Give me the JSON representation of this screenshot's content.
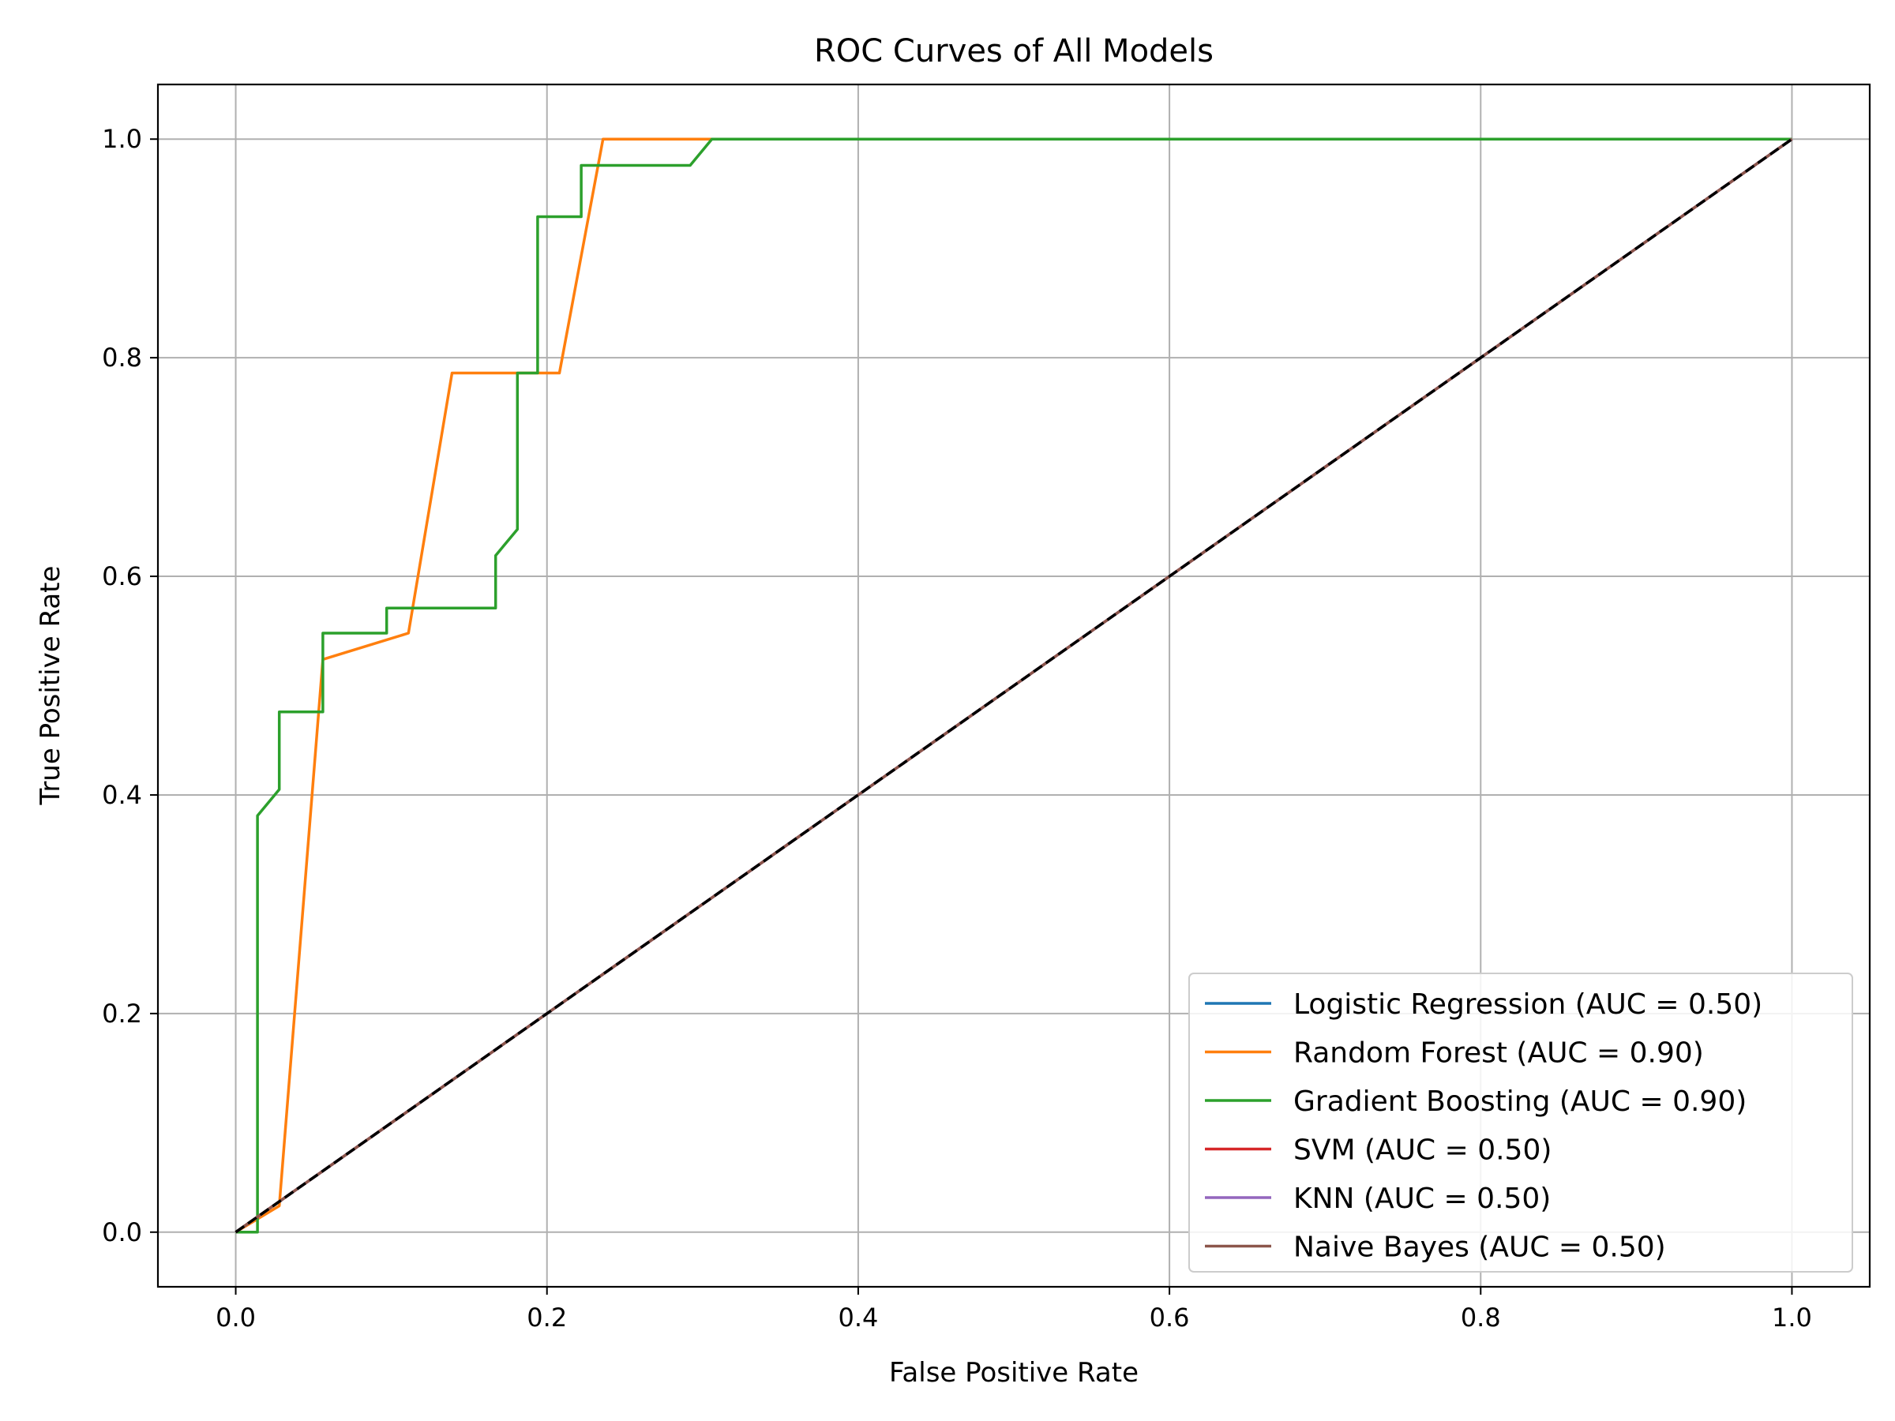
{
  "chart_data": {
    "type": "line",
    "title": "ROC Curves of All Models",
    "xlabel": "False Positive Rate",
    "ylabel": "True Positive Rate",
    "xlim": [
      -0.05,
      1.05
    ],
    "ylim": [
      -0.05,
      1.05
    ],
    "xticks": [
      0.0,
      0.2,
      0.4,
      0.6,
      0.8,
      1.0
    ],
    "yticks": [
      0.0,
      0.2,
      0.4,
      0.6,
      0.8,
      1.0
    ],
    "xtick_labels": [
      "0.0",
      "0.2",
      "0.4",
      "0.6",
      "0.8",
      "1.0"
    ],
    "ytick_labels": [
      "0.0",
      "0.2",
      "0.4",
      "0.6",
      "0.8",
      "1.0"
    ],
    "grid": true,
    "legend_position": "lower-right",
    "series": [
      {
        "name": "Logistic Regression (AUC = 0.50)",
        "color": "#1f77b4",
        "x": [
          0.0,
          1.0
        ],
        "y": [
          0.0,
          1.0
        ]
      },
      {
        "name": "Random Forest (AUC = 0.90)",
        "color": "#ff7f0e",
        "x": [
          0.0,
          0.028,
          0.056,
          0.111,
          0.139,
          0.208,
          0.236,
          1.0
        ],
        "y": [
          0.0,
          0.024,
          0.524,
          0.548,
          0.786,
          0.786,
          1.0,
          1.0
        ]
      },
      {
        "name": "Gradient Boosting (AUC = 0.90)",
        "color": "#2ca02c",
        "x": [
          0.0,
          0.014,
          0.014,
          0.028,
          0.028,
          0.056,
          0.056,
          0.097,
          0.097,
          0.167,
          0.167,
          0.181,
          0.181,
          0.194,
          0.194,
          0.222,
          0.222,
          0.292,
          0.306,
          1.0
        ],
        "y": [
          0.0,
          0.0,
          0.381,
          0.405,
          0.476,
          0.476,
          0.548,
          0.548,
          0.571,
          0.571,
          0.619,
          0.643,
          0.786,
          0.786,
          0.929,
          0.929,
          0.976,
          0.976,
          1.0,
          1.0
        ]
      },
      {
        "name": "SVM (AUC = 0.50)",
        "color": "#d62728",
        "x": [
          0.0,
          1.0
        ],
        "y": [
          0.0,
          1.0
        ]
      },
      {
        "name": "KNN (AUC = 0.50)",
        "color": "#9467bd",
        "x": [
          0.0,
          1.0
        ],
        "y": [
          0.0,
          1.0
        ]
      },
      {
        "name": "Naive Bayes (AUC = 0.50)",
        "color": "#8c564b",
        "x": [
          0.0,
          1.0
        ],
        "y": [
          0.0,
          1.0
        ]
      }
    ],
    "reference_line": {
      "color": "#000000",
      "style": "dashed",
      "x": [
        0.0,
        1.0
      ],
      "y": [
        0.0,
        1.0
      ]
    }
  }
}
